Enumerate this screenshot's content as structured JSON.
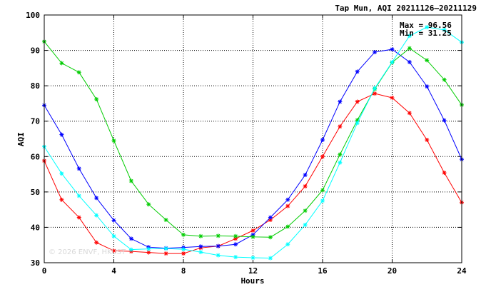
{
  "chart_data": {
    "type": "line",
    "title": "Tap Mun, AQI 20211126–20211129",
    "xlabel": "Hours",
    "ylabel": "AQI",
    "xlim": [
      0,
      24
    ],
    "ylim": [
      30,
      100
    ],
    "x_ticks": [
      0,
      4,
      8,
      12,
      16,
      20,
      24
    ],
    "y_ticks": [
      30,
      40,
      50,
      60,
      70,
      80,
      90,
      100
    ],
    "grid": true,
    "annotations": [
      "Max = 96.56",
      "Min = 31.25"
    ],
    "watermark": "© 2026  ENVF, HKUST",
    "x": [
      0,
      1,
      2,
      3,
      4,
      5,
      6,
      7,
      8,
      9,
      10,
      11,
      12,
      13,
      14,
      15,
      16,
      17,
      18,
      19,
      20,
      21,
      22,
      23,
      24
    ],
    "series": [
      {
        "color": "#ff0000",
        "values": [
          58.8,
          47.8,
          42.8,
          35.7,
          33.4,
          33.2,
          32.9,
          32.6,
          32.6,
          34.2,
          34.7,
          36.8,
          39.1,
          42.1,
          46.0,
          51.6,
          60.0,
          68.5,
          75.5,
          77.8,
          76.6,
          72.3,
          64.7,
          55.4,
          47.0
        ]
      },
      {
        "color": "#0000ff",
        "values": [
          74.5,
          66.2,
          56.6,
          48.3,
          42.0,
          36.8,
          34.4,
          34.1,
          34.3,
          34.6,
          34.7,
          35.2,
          37.9,
          42.8,
          47.8,
          54.8,
          64.7,
          75.5,
          84.0,
          89.5,
          90.3,
          86.7,
          79.8,
          70.2,
          59.2
        ]
      },
      {
        "color": "#00cc00",
        "values": [
          92.5,
          86.4,
          83.8,
          76.2,
          64.5,
          53.1,
          46.5,
          42.1,
          37.9,
          37.5,
          37.6,
          37.5,
          37.3,
          37.2,
          40.2,
          44.7,
          50.5,
          60.6,
          70.3,
          79.1,
          86.6,
          90.6,
          87.2,
          81.7,
          74.6
        ]
      },
      {
        "color": "#00ffff",
        "values": [
          62.8,
          55.2,
          48.9,
          43.4,
          37.5,
          33.7,
          33.9,
          34.0,
          33.8,
          33.0,
          32.1,
          31.6,
          31.4,
          31.3,
          35.2,
          40.7,
          47.5,
          58.3,
          69.5,
          79.3,
          86.7,
          94.1,
          96.56,
          95.8,
          92.3
        ]
      }
    ]
  }
}
